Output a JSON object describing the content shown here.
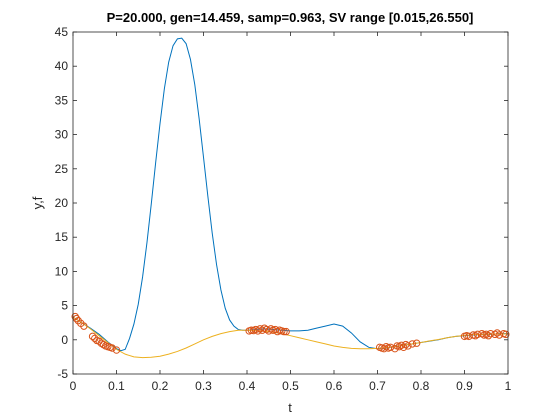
{
  "chart_data": {
    "type": "line",
    "title": "P=20.000, gen=14.459, samp=0.963, SV range [0.015,26.550]",
    "xlabel": "t",
    "ylabel": "y,f",
    "xlim": [
      0,
      1
    ],
    "ylim": [
      -5,
      45
    ],
    "xticks": [
      "0",
      "0.1",
      "0.2",
      "0.3",
      "0.4",
      "0.5",
      "0.6",
      "0.7",
      "0.8",
      "0.9",
      "1"
    ],
    "yticks": [
      "-5",
      "0",
      "5",
      "10",
      "15",
      "20",
      "25",
      "30",
      "35",
      "40",
      "45"
    ],
    "grid": false,
    "legend": "none",
    "colors": {
      "true_function": "#0072BD",
      "fit": "#EDB120",
      "samples": "#D95319",
      "axes": "#262626"
    },
    "series": [
      {
        "color": "#0072BD",
        "x": [
          0.0,
          0.02,
          0.04,
          0.06,
          0.08,
          0.1,
          0.11,
          0.12,
          0.13,
          0.14,
          0.15,
          0.16,
          0.17,
          0.18,
          0.19,
          0.2,
          0.21,
          0.22,
          0.23,
          0.24,
          0.25,
          0.26,
          0.27,
          0.28,
          0.29,
          0.3,
          0.31,
          0.32,
          0.33,
          0.34,
          0.35,
          0.36,
          0.37,
          0.38,
          0.39,
          0.4,
          0.42,
          0.44,
          0.46,
          0.48,
          0.5,
          0.52,
          0.54,
          0.56,
          0.58,
          0.6,
          0.62,
          0.64,
          0.66,
          0.68,
          0.7,
          0.72,
          0.74,
          0.76,
          0.78,
          0.8,
          0.82,
          0.84,
          0.86,
          0.88,
          0.9,
          0.92,
          0.94,
          0.96,
          0.98,
          1.0
        ],
        "y": [
          3.3,
          2.5,
          1.7,
          0.8,
          -0.3,
          -1.3,
          -1.6,
          -1.4,
          0.2,
          2.3,
          5.2,
          9.2,
          14.2,
          19.9,
          25.9,
          31.6,
          36.7,
          40.6,
          43.0,
          44.0,
          44.1,
          43.3,
          41.0,
          37.3,
          32.3,
          26.7,
          21.0,
          15.6,
          11.0,
          7.3,
          4.6,
          2.9,
          2.0,
          1.5,
          1.4,
          1.4,
          1.5,
          1.6,
          1.5,
          1.4,
          1.3,
          1.3,
          1.4,
          1.7,
          2.0,
          2.3,
          2.0,
          1.0,
          -0.3,
          -1.1,
          -1.3,
          -1.2,
          -1.0,
          -0.8,
          -0.6,
          -0.4,
          -0.2,
          0.0,
          0.3,
          0.5,
          0.6,
          0.7,
          0.8,
          0.8,
          0.9,
          0.9
        ]
      },
      {
        "color": "#EDB120",
        "x": [
          0.0,
          0.02,
          0.04,
          0.06,
          0.08,
          0.1,
          0.12,
          0.14,
          0.16,
          0.18,
          0.2,
          0.22,
          0.24,
          0.26,
          0.28,
          0.3,
          0.32,
          0.34,
          0.36,
          0.38,
          0.4,
          0.42,
          0.44,
          0.46,
          0.48,
          0.5,
          0.52,
          0.54,
          0.56,
          0.58,
          0.6,
          0.62,
          0.64,
          0.66,
          0.68,
          0.7,
          0.72,
          0.74,
          0.76,
          0.78,
          0.8,
          0.82,
          0.84,
          0.86,
          0.88,
          0.9,
          0.92,
          0.94,
          0.96,
          0.98,
          1.0
        ],
        "y": [
          3.3,
          2.5,
          1.6,
          0.6,
          -0.4,
          -1.4,
          -2.1,
          -2.5,
          -2.6,
          -2.55,
          -2.4,
          -2.1,
          -1.7,
          -1.2,
          -0.6,
          0.0,
          0.5,
          0.9,
          1.2,
          1.4,
          1.4,
          1.35,
          1.25,
          1.1,
          0.9,
          0.6,
          0.3,
          0.0,
          -0.3,
          -0.6,
          -0.9,
          -1.1,
          -1.25,
          -1.3,
          -1.3,
          -1.25,
          -1.15,
          -1.0,
          -0.8,
          -0.6,
          -0.4,
          -0.15,
          0.05,
          0.3,
          0.5,
          0.65,
          0.75,
          0.8,
          0.85,
          0.85,
          0.85
        ]
      }
    ],
    "samples": {
      "color": "#D95319",
      "x": [
        0.005,
        0.008,
        0.012,
        0.018,
        0.025,
        0.045,
        0.05,
        0.055,
        0.06,
        0.065,
        0.07,
        0.075,
        0.08,
        0.085,
        0.09,
        0.1,
        0.405,
        0.41,
        0.415,
        0.42,
        0.425,
        0.43,
        0.435,
        0.44,
        0.445,
        0.45,
        0.455,
        0.46,
        0.465,
        0.47,
        0.475,
        0.48,
        0.485,
        0.49,
        0.705,
        0.71,
        0.715,
        0.72,
        0.725,
        0.73,
        0.74,
        0.745,
        0.75,
        0.755,
        0.76,
        0.765,
        0.77,
        0.78,
        0.79,
        0.9,
        0.905,
        0.91,
        0.92,
        0.925,
        0.93,
        0.94,
        0.945,
        0.95,
        0.955,
        0.96,
        0.97,
        0.975,
        0.98,
        0.99,
        0.995
      ],
      "y": [
        3.4,
        3.1,
        2.8,
        2.4,
        2.0,
        0.5,
        0.2,
        -0.1,
        -0.2,
        -0.5,
        -0.7,
        -0.9,
        -1.0,
        -1.1,
        -1.2,
        -1.5,
        1.3,
        1.4,
        1.35,
        1.5,
        1.3,
        1.6,
        1.4,
        1.7,
        1.5,
        1.3,
        1.6,
        1.4,
        1.5,
        1.2,
        1.4,
        1.3,
        1.2,
        1.2,
        -1.1,
        -1.2,
        -1.3,
        -1.0,
        -1.2,
        -1.1,
        -1.3,
        -0.9,
        -1.0,
        -0.8,
        -1.1,
        -0.7,
        -0.9,
        -0.6,
        -0.5,
        0.5,
        0.6,
        0.5,
        0.7,
        0.6,
        0.8,
        0.9,
        0.7,
        0.8,
        0.6,
        0.9,
        0.8,
        1.0,
        0.7,
        0.9,
        0.8
      ]
    }
  }
}
